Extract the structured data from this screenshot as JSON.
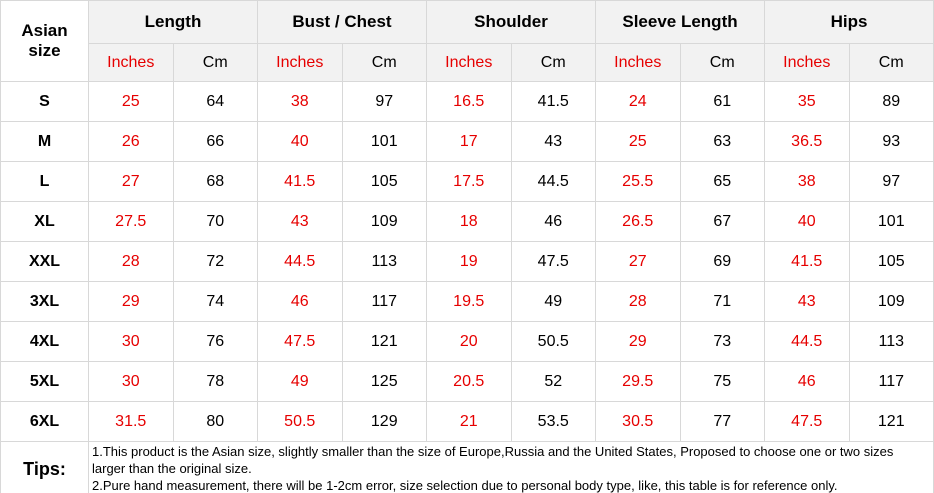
{
  "colors": {
    "accent_red": "#e60000",
    "header_bg": "#f2f2f2",
    "border": "#d8d8d8",
    "cell_bg": "#ffffff"
  },
  "chart_data": {
    "type": "table",
    "title": "",
    "corner_header": "Asian size",
    "column_groups": [
      "Length",
      "Bust / Chest",
      "Shoulder",
      "Sleeve Length",
      "Hips"
    ],
    "unit_headers": [
      "Inches",
      "Cm"
    ],
    "rows": [
      {
        "size": "S",
        "values": [
          "25",
          "64",
          "38",
          "97",
          "16.5",
          "41.5",
          "24",
          "61",
          "35",
          "89"
        ]
      },
      {
        "size": "M",
        "values": [
          "26",
          "66",
          "40",
          "101",
          "17",
          "43",
          "25",
          "63",
          "36.5",
          "93"
        ]
      },
      {
        "size": "L",
        "values": [
          "27",
          "68",
          "41.5",
          "105",
          "17.5",
          "44.5",
          "25.5",
          "65",
          "38",
          "97"
        ]
      },
      {
        "size": "XL",
        "values": [
          "27.5",
          "70",
          "43",
          "109",
          "18",
          "46",
          "26.5",
          "67",
          "40",
          "101"
        ]
      },
      {
        "size": "XXL",
        "values": [
          "28",
          "72",
          "44.5",
          "113",
          "19",
          "47.5",
          "27",
          "69",
          "41.5",
          "105"
        ]
      },
      {
        "size": "3XL",
        "values": [
          "29",
          "74",
          "46",
          "117",
          "19.5",
          "49",
          "28",
          "71",
          "43",
          "109"
        ]
      },
      {
        "size": "4XL",
        "values": [
          "30",
          "76",
          "47.5",
          "121",
          "20",
          "50.5",
          "29",
          "73",
          "44.5",
          "113"
        ]
      },
      {
        "size": "5XL",
        "values": [
          "30",
          "78",
          "49",
          "125",
          "20.5",
          "52",
          "29.5",
          "75",
          "46",
          "117"
        ]
      },
      {
        "size": "6XL",
        "values": [
          "31.5",
          "80",
          "50.5",
          "129",
          "21",
          "53.5",
          "30.5",
          "77",
          "47.5",
          "121"
        ]
      }
    ]
  },
  "tips": {
    "label": "Tips:",
    "lines": [
      "1.This product is the Asian size, slightly smaller than the size of Europe,Russia and the United States, Proposed to choose one or two sizes larger than the original size.",
      "2.Pure hand measurement, there will be 1-2cm error, size selection due to personal body type, like, this table is for reference only."
    ]
  }
}
